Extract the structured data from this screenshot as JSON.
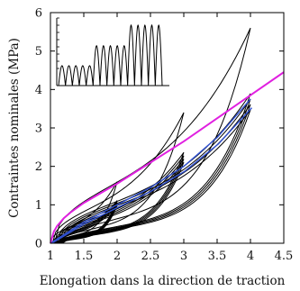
{
  "chart_data": {
    "type": "line",
    "xlabel": "Elongation dans la direction de traction",
    "ylabel": "Contraintes nominales (MPa)",
    "xlim": [
      1,
      4.5
    ],
    "ylim": [
      0,
      6
    ],
    "x_ticks": [
      "1",
      "1.5",
      "2",
      "2.5",
      "3",
      "3.5",
      "4",
      "4.5"
    ],
    "y_ticks": [
      "0",
      "1",
      "2",
      "3",
      "4",
      "5",
      "6"
    ],
    "grid": false,
    "legend": "none",
    "series": [
      {
        "role": "experimental cyclic loading (black)",
        "color": "#000000",
        "cycles": [
          {
            "max_x": 2.0,
            "max_y": 1.6,
            "count": 5
          },
          {
            "max_x": 3.0,
            "max_y": 3.4,
            "count": 5
          },
          {
            "max_x": 4.0,
            "max_y": 5.6,
            "count": 5
          }
        ]
      },
      {
        "role": "model envelope (magenta)",
        "color": "#e020e0",
        "x": [
          1.0,
          1.05,
          1.1,
          1.2,
          1.3,
          1.5,
          1.75,
          2.0,
          2.5,
          3.0,
          3.5,
          4.0,
          4.5
        ],
        "y": [
          0.0,
          0.3,
          0.45,
          0.65,
          0.8,
          1.05,
          1.3,
          1.55,
          2.1,
          2.65,
          3.25,
          3.85,
          4.45
        ]
      },
      {
        "role": "model stabilized loops (blue)",
        "color": "#3050d0",
        "x": [
          1.0,
          1.5,
          2.0,
          2.5,
          3.0,
          3.5,
          4.0
        ],
        "y": [
          0.0,
          0.55,
          1.0,
          1.45,
          2.0,
          2.75,
          3.75
        ]
      }
    ],
    "inset": {
      "description_of_signal": "loading cycles: 5 small, 5 medium, 5 large",
      "groups": [
        {
          "count": 5,
          "amplitude": 0.33
        },
        {
          "count": 5,
          "amplitude": 0.66
        },
        {
          "count": 5,
          "amplitude": 1.0
        }
      ]
    }
  }
}
